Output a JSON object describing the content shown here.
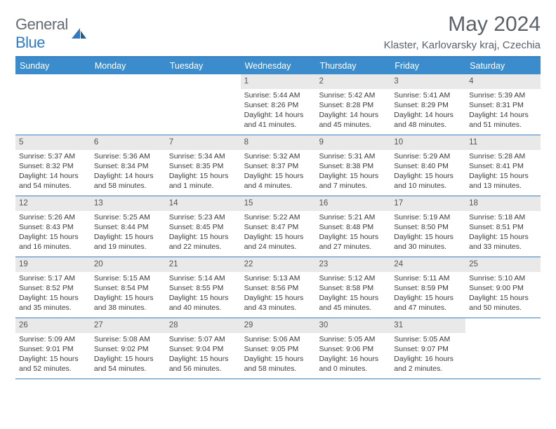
{
  "brand": {
    "word1": "General",
    "word2": "Blue"
  },
  "title": "May 2024",
  "location": "Klaster, Karlovarsky kraj, Czechia",
  "colors": {
    "header_bg": "#3b8ccc",
    "border": "#3b7fbf",
    "daynum_bg": "#e9e9e9",
    "text": "#3b3b3b",
    "muted": "#5a6168"
  },
  "weekdays": [
    "Sunday",
    "Monday",
    "Tuesday",
    "Wednesday",
    "Thursday",
    "Friday",
    "Saturday"
  ],
  "weeks": [
    [
      {
        "n": "",
        "sr": "",
        "ss": "",
        "d1": "",
        "d2": ""
      },
      {
        "n": "",
        "sr": "",
        "ss": "",
        "d1": "",
        "d2": ""
      },
      {
        "n": "",
        "sr": "",
        "ss": "",
        "d1": "",
        "d2": ""
      },
      {
        "n": "1",
        "sr": "Sunrise: 5:44 AM",
        "ss": "Sunset: 8:26 PM",
        "d1": "Daylight: 14 hours",
        "d2": "and 41 minutes."
      },
      {
        "n": "2",
        "sr": "Sunrise: 5:42 AM",
        "ss": "Sunset: 8:28 PM",
        "d1": "Daylight: 14 hours",
        "d2": "and 45 minutes."
      },
      {
        "n": "3",
        "sr": "Sunrise: 5:41 AM",
        "ss": "Sunset: 8:29 PM",
        "d1": "Daylight: 14 hours",
        "d2": "and 48 minutes."
      },
      {
        "n": "4",
        "sr": "Sunrise: 5:39 AM",
        "ss": "Sunset: 8:31 PM",
        "d1": "Daylight: 14 hours",
        "d2": "and 51 minutes."
      }
    ],
    [
      {
        "n": "5",
        "sr": "Sunrise: 5:37 AM",
        "ss": "Sunset: 8:32 PM",
        "d1": "Daylight: 14 hours",
        "d2": "and 54 minutes."
      },
      {
        "n": "6",
        "sr": "Sunrise: 5:36 AM",
        "ss": "Sunset: 8:34 PM",
        "d1": "Daylight: 14 hours",
        "d2": "and 58 minutes."
      },
      {
        "n": "7",
        "sr": "Sunrise: 5:34 AM",
        "ss": "Sunset: 8:35 PM",
        "d1": "Daylight: 15 hours",
        "d2": "and 1 minute."
      },
      {
        "n": "8",
        "sr": "Sunrise: 5:32 AM",
        "ss": "Sunset: 8:37 PM",
        "d1": "Daylight: 15 hours",
        "d2": "and 4 minutes."
      },
      {
        "n": "9",
        "sr": "Sunrise: 5:31 AM",
        "ss": "Sunset: 8:38 PM",
        "d1": "Daylight: 15 hours",
        "d2": "and 7 minutes."
      },
      {
        "n": "10",
        "sr": "Sunrise: 5:29 AM",
        "ss": "Sunset: 8:40 PM",
        "d1": "Daylight: 15 hours",
        "d2": "and 10 minutes."
      },
      {
        "n": "11",
        "sr": "Sunrise: 5:28 AM",
        "ss": "Sunset: 8:41 PM",
        "d1": "Daylight: 15 hours",
        "d2": "and 13 minutes."
      }
    ],
    [
      {
        "n": "12",
        "sr": "Sunrise: 5:26 AM",
        "ss": "Sunset: 8:43 PM",
        "d1": "Daylight: 15 hours",
        "d2": "and 16 minutes."
      },
      {
        "n": "13",
        "sr": "Sunrise: 5:25 AM",
        "ss": "Sunset: 8:44 PM",
        "d1": "Daylight: 15 hours",
        "d2": "and 19 minutes."
      },
      {
        "n": "14",
        "sr": "Sunrise: 5:23 AM",
        "ss": "Sunset: 8:45 PM",
        "d1": "Daylight: 15 hours",
        "d2": "and 22 minutes."
      },
      {
        "n": "15",
        "sr": "Sunrise: 5:22 AM",
        "ss": "Sunset: 8:47 PM",
        "d1": "Daylight: 15 hours",
        "d2": "and 24 minutes."
      },
      {
        "n": "16",
        "sr": "Sunrise: 5:21 AM",
        "ss": "Sunset: 8:48 PM",
        "d1": "Daylight: 15 hours",
        "d2": "and 27 minutes."
      },
      {
        "n": "17",
        "sr": "Sunrise: 5:19 AM",
        "ss": "Sunset: 8:50 PM",
        "d1": "Daylight: 15 hours",
        "d2": "and 30 minutes."
      },
      {
        "n": "18",
        "sr": "Sunrise: 5:18 AM",
        "ss": "Sunset: 8:51 PM",
        "d1": "Daylight: 15 hours",
        "d2": "and 33 minutes."
      }
    ],
    [
      {
        "n": "19",
        "sr": "Sunrise: 5:17 AM",
        "ss": "Sunset: 8:52 PM",
        "d1": "Daylight: 15 hours",
        "d2": "and 35 minutes."
      },
      {
        "n": "20",
        "sr": "Sunrise: 5:15 AM",
        "ss": "Sunset: 8:54 PM",
        "d1": "Daylight: 15 hours",
        "d2": "and 38 minutes."
      },
      {
        "n": "21",
        "sr": "Sunrise: 5:14 AM",
        "ss": "Sunset: 8:55 PM",
        "d1": "Daylight: 15 hours",
        "d2": "and 40 minutes."
      },
      {
        "n": "22",
        "sr": "Sunrise: 5:13 AM",
        "ss": "Sunset: 8:56 PM",
        "d1": "Daylight: 15 hours",
        "d2": "and 43 minutes."
      },
      {
        "n": "23",
        "sr": "Sunrise: 5:12 AM",
        "ss": "Sunset: 8:58 PM",
        "d1": "Daylight: 15 hours",
        "d2": "and 45 minutes."
      },
      {
        "n": "24",
        "sr": "Sunrise: 5:11 AM",
        "ss": "Sunset: 8:59 PM",
        "d1": "Daylight: 15 hours",
        "d2": "and 47 minutes."
      },
      {
        "n": "25",
        "sr": "Sunrise: 5:10 AM",
        "ss": "Sunset: 9:00 PM",
        "d1": "Daylight: 15 hours",
        "d2": "and 50 minutes."
      }
    ],
    [
      {
        "n": "26",
        "sr": "Sunrise: 5:09 AM",
        "ss": "Sunset: 9:01 PM",
        "d1": "Daylight: 15 hours",
        "d2": "and 52 minutes."
      },
      {
        "n": "27",
        "sr": "Sunrise: 5:08 AM",
        "ss": "Sunset: 9:02 PM",
        "d1": "Daylight: 15 hours",
        "d2": "and 54 minutes."
      },
      {
        "n": "28",
        "sr": "Sunrise: 5:07 AM",
        "ss": "Sunset: 9:04 PM",
        "d1": "Daylight: 15 hours",
        "d2": "and 56 minutes."
      },
      {
        "n": "29",
        "sr": "Sunrise: 5:06 AM",
        "ss": "Sunset: 9:05 PM",
        "d1": "Daylight: 15 hours",
        "d2": "and 58 minutes."
      },
      {
        "n": "30",
        "sr": "Sunrise: 5:05 AM",
        "ss": "Sunset: 9:06 PM",
        "d1": "Daylight: 16 hours",
        "d2": "and 0 minutes."
      },
      {
        "n": "31",
        "sr": "Sunrise: 5:05 AM",
        "ss": "Sunset: 9:07 PM",
        "d1": "Daylight: 16 hours",
        "d2": "and 2 minutes."
      },
      {
        "n": "",
        "sr": "",
        "ss": "",
        "d1": "",
        "d2": ""
      }
    ]
  ]
}
